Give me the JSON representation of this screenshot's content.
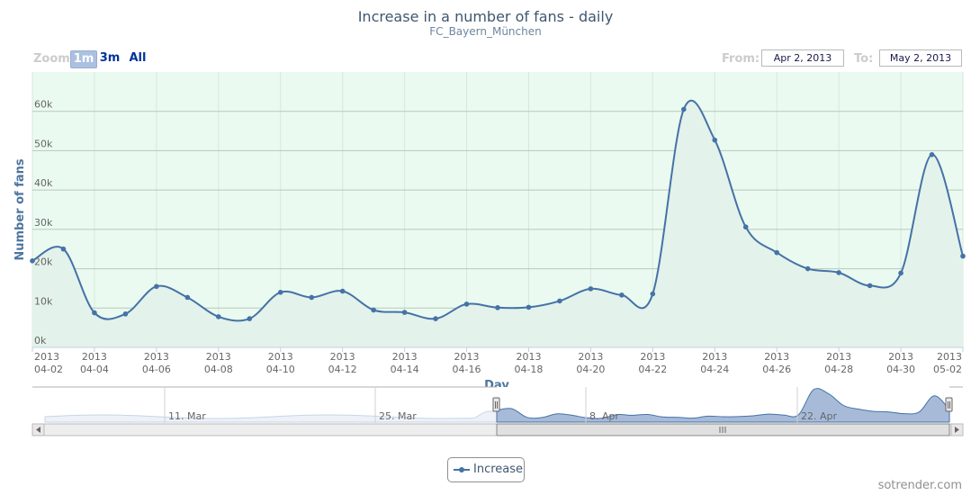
{
  "title": "Increase in a number of fans - daily",
  "subtitle": "FC_Bayern_München",
  "zoom": {
    "label": "Zoom",
    "buttons": [
      "1m",
      "3m",
      "All"
    ],
    "selected": "1m"
  },
  "range": {
    "from_label": "From:",
    "from_value": "Apr 2, 2013",
    "to_label": "To:",
    "to_value": "May 2, 2013"
  },
  "credit": "sotrender.com",
  "legend": {
    "label": "Increase"
  },
  "colors": {
    "series": "#4572a7",
    "plot_bg": "#eafaf0",
    "area": "#e3f2ea",
    "navigator_fill": "#a7bbd9"
  },
  "chart_data": {
    "type": "area",
    "series": [
      {
        "name": "Increase",
        "x": [
          "2013-04-02",
          "2013-04-03",
          "2013-04-04",
          "2013-04-05",
          "2013-04-06",
          "2013-04-07",
          "2013-04-08",
          "2013-04-09",
          "2013-04-10",
          "2013-04-11",
          "2013-04-12",
          "2013-04-13",
          "2013-04-14",
          "2013-04-15",
          "2013-04-16",
          "2013-04-17",
          "2013-04-18",
          "2013-04-19",
          "2013-04-20",
          "2013-04-21",
          "2013-04-22",
          "2013-04-23",
          "2013-04-24",
          "2013-04-25",
          "2013-04-26",
          "2013-04-27",
          "2013-04-28",
          "2013-04-29",
          "2013-04-30",
          "2013-05-01",
          "2013-05-02"
        ],
        "values": [
          22000,
          25000,
          8800,
          8500,
          15500,
          12700,
          7800,
          7300,
          14000,
          12700,
          14300,
          9500,
          8900,
          7300,
          11000,
          10100,
          10200,
          11800,
          14900,
          13300,
          13600,
          60500,
          52700,
          30600,
          24100,
          20000,
          19000,
          15700,
          18900,
          49000,
          23200
        ]
      }
    ],
    "xlabel": "Day",
    "ylabel": "Number of fans",
    "ylim": [
      0,
      70000
    ],
    "yticks": [
      0,
      10000,
      20000,
      30000,
      40000,
      50000,
      60000
    ],
    "ytick_labels": [
      "0k",
      "10k",
      "20k",
      "30k",
      "40k",
      "50k",
      "60k"
    ],
    "xtick_labels": [
      [
        "2013",
        "04-02"
      ],
      [
        "2013",
        "04-04"
      ],
      [
        "2013",
        "04-06"
      ],
      [
        "2013",
        "04-08"
      ],
      [
        "2013",
        "04-10"
      ],
      [
        "2013",
        "04-12"
      ],
      [
        "2013",
        "04-14"
      ],
      [
        "2013",
        "04-16"
      ],
      [
        "2013",
        "04-18"
      ],
      [
        "2013",
        "04-20"
      ],
      [
        "2013",
        "04-22"
      ],
      [
        "2013",
        "04-24"
      ],
      [
        "2013",
        "04-26"
      ],
      [
        "2013",
        "04-28"
      ],
      [
        "2013",
        "04-30"
      ],
      [
        "2013",
        "05-02"
      ]
    ],
    "grid": true,
    "legend_position": "bottom-center",
    "navigator": {
      "labels": [
        "11. Mar",
        "25. Mar",
        "8. Apr",
        "22. Apr"
      ]
    }
  }
}
